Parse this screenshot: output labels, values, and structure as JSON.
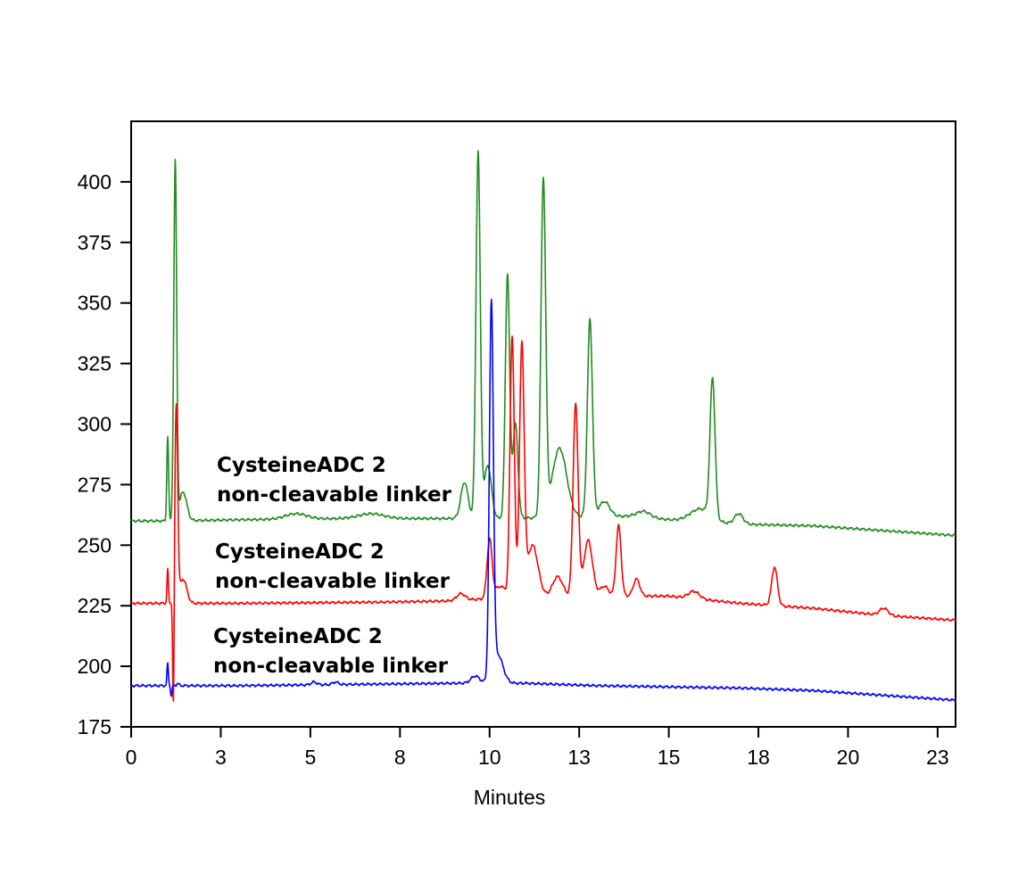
{
  "chart_data": {
    "type": "line",
    "title": "",
    "xlabel": "Minutes",
    "ylabel": "",
    "xlim": [
      0,
      23
    ],
    "ylim": [
      175,
      425
    ],
    "x_ticks": [
      {
        "value": 0,
        "label": "0"
      },
      {
        "value": 2.5,
        "label": "3"
      },
      {
        "value": 5,
        "label": "5"
      },
      {
        "value": 7.5,
        "label": "8"
      },
      {
        "value": 10,
        "label": "10"
      },
      {
        "value": 12.5,
        "label": "13"
      },
      {
        "value": 15,
        "label": "15"
      },
      {
        "value": 17.5,
        "label": "18"
      },
      {
        "value": 20,
        "label": "20"
      },
      {
        "value": 22.5,
        "label": "23"
      }
    ],
    "y_ticks": [
      {
        "value": 175,
        "label": "175"
      },
      {
        "value": 200,
        "label": "200"
      },
      {
        "value": 225,
        "label": "225"
      },
      {
        "value": 250,
        "label": "250"
      },
      {
        "value": 275,
        "label": "275"
      },
      {
        "value": 300,
        "label": "300"
      },
      {
        "value": 325,
        "label": "325"
      },
      {
        "value": 350,
        "label": "350"
      },
      {
        "value": 375,
        "label": "375"
      },
      {
        "value": 400,
        "label": "400"
      }
    ],
    "grid": false,
    "legend": "none",
    "series": [
      {
        "color": "#228B22",
        "baseline": [
          [
            0,
            260
          ],
          [
            1.0,
            260
          ],
          [
            3,
            260.5
          ],
          [
            6,
            261
          ],
          [
            9,
            261
          ],
          [
            10.2,
            261
          ],
          [
            14,
            262
          ],
          [
            16,
            259
          ],
          [
            19,
            258
          ],
          [
            21,
            256
          ],
          [
            23,
            254
          ]
        ],
        "peaks": [
          {
            "x": 1.02,
            "height": 295,
            "sigma": 0.025
          },
          {
            "x": 1.23,
            "height": 408,
            "sigma": 0.04
          },
          {
            "x": 1.45,
            "height": 272,
            "sigma": 0.1
          },
          {
            "x": 4.6,
            "height": 263,
            "sigma": 0.3
          },
          {
            "x": 6.7,
            "height": 263,
            "sigma": 0.35
          },
          {
            "x": 9.3,
            "height": 276,
            "sigma": 0.1
          },
          {
            "x": 9.68,
            "height": 412,
            "sigma": 0.06
          },
          {
            "x": 9.95,
            "height": 283,
            "sigma": 0.1
          },
          {
            "x": 10.5,
            "height": 362,
            "sigma": 0.06
          },
          {
            "x": 10.72,
            "height": 300,
            "sigma": 0.07
          },
          {
            "x": 11.5,
            "height": 400,
            "sigma": 0.065
          },
          {
            "x": 11.95,
            "height": 290,
            "sigma": 0.2
          },
          {
            "x": 12.8,
            "height": 343,
            "sigma": 0.07
          },
          {
            "x": 13.2,
            "height": 268,
            "sigma": 0.15
          },
          {
            "x": 14.3,
            "height": 264,
            "sigma": 0.18
          },
          {
            "x": 15.9,
            "height": 265,
            "sigma": 0.3
          },
          {
            "x": 16.22,
            "height": 316,
            "sigma": 0.07
          },
          {
            "x": 16.95,
            "height": 263,
            "sigma": 0.12
          }
        ]
      },
      {
        "color": "#FF0000",
        "baseline": [
          [
            0,
            226
          ],
          [
            1.0,
            226
          ],
          [
            3,
            226
          ],
          [
            7,
            226.5
          ],
          [
            9,
            227
          ],
          [
            11,
            229
          ],
          [
            15,
            229
          ],
          [
            17,
            226
          ],
          [
            19,
            224
          ],
          [
            21,
            221
          ],
          [
            23,
            219
          ]
        ],
        "peaks": [
          {
            "x": 1.02,
            "height": 240,
            "sigma": 0.02
          },
          {
            "x": 1.18,
            "height": 174,
            "sigma": 0.02
          },
          {
            "x": 1.26,
            "height": 307,
            "sigma": 0.04
          },
          {
            "x": 1.45,
            "height": 236,
            "sigma": 0.1
          },
          {
            "x": 9.2,
            "height": 230,
            "sigma": 0.12
          },
          {
            "x": 10.0,
            "height": 252,
            "sigma": 0.07
          },
          {
            "x": 10.3,
            "height": 233,
            "sigma": 0.15
          },
          {
            "x": 10.63,
            "height": 336,
            "sigma": 0.06
          },
          {
            "x": 10.9,
            "height": 331,
            "sigma": 0.065
          },
          {
            "x": 11.2,
            "height": 250,
            "sigma": 0.15
          },
          {
            "x": 11.9,
            "height": 237,
            "sigma": 0.14
          },
          {
            "x": 12.4,
            "height": 308,
            "sigma": 0.07
          },
          {
            "x": 12.75,
            "height": 252,
            "sigma": 0.12
          },
          {
            "x": 13.2,
            "height": 233,
            "sigma": 0.12
          },
          {
            "x": 13.6,
            "height": 258,
            "sigma": 0.07
          },
          {
            "x": 14.1,
            "height": 236,
            "sigma": 0.09
          },
          {
            "x": 15.7,
            "height": 231,
            "sigma": 0.15
          },
          {
            "x": 17.95,
            "height": 241,
            "sigma": 0.08
          },
          {
            "x": 21.0,
            "height": 224,
            "sigma": 0.12
          }
        ]
      },
      {
        "color": "#0000FF",
        "baseline": [
          [
            0,
            192
          ],
          [
            1.0,
            192
          ],
          [
            3,
            192
          ],
          [
            6,
            192.5
          ],
          [
            9,
            193
          ],
          [
            11,
            193
          ],
          [
            13,
            192
          ],
          [
            15,
            191.5
          ],
          [
            17,
            191
          ],
          [
            19,
            190
          ],
          [
            21,
            188
          ],
          [
            23,
            186
          ]
        ],
        "peaks": [
          {
            "x": 1.02,
            "height": 201,
            "sigma": 0.02
          },
          {
            "x": 1.12,
            "height": 188,
            "sigma": 0.02
          },
          {
            "x": 1.3,
            "height": 193,
            "sigma": 0.03
          },
          {
            "x": 5.1,
            "height": 193.5,
            "sigma": 0.08
          },
          {
            "x": 5.7,
            "height": 193.5,
            "sigma": 0.08
          },
          {
            "x": 9.6,
            "height": 196,
            "sigma": 0.12
          },
          {
            "x": 10.05,
            "height": 345,
            "sigma": 0.055
          },
          {
            "x": 10.22,
            "height": 205,
            "sigma": 0.15
          }
        ]
      }
    ],
    "annotations": [
      {
        "lines": [
          "CysteineADC 2",
          "non-cleavable linker"
        ]
      },
      {
        "lines": [
          "CysteineADC 2",
          "non-cleavable linker"
        ]
      },
      {
        "lines": [
          "CysteineADC 2",
          "non-cleavable linker"
        ]
      }
    ]
  }
}
